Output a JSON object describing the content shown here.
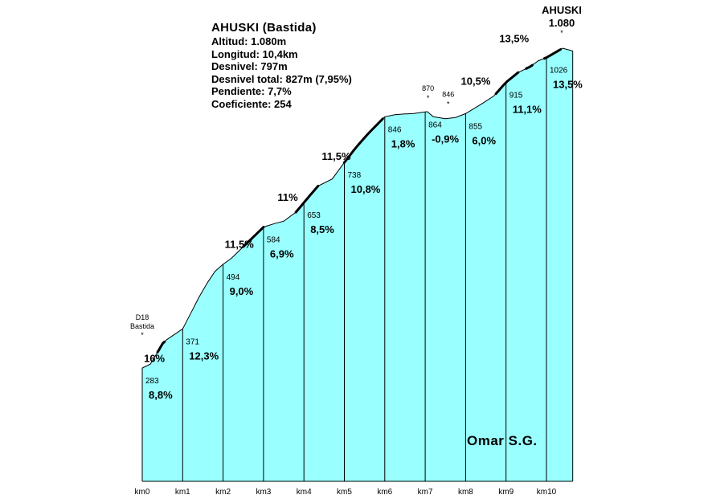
{
  "info": {
    "title": "AHUSKI (Bastida)",
    "lines": [
      "Altitud:  1.080m",
      "Longitud:  10,4km",
      "Desnivel:  797m",
      "Desnivel total:  827m (7,95%)",
      "Pendiente:  7,7%",
      "Coeficiente:  254"
    ]
  },
  "summit": {
    "name": "AHUSKI",
    "altitude": "1.080",
    "marker": "*"
  },
  "start": {
    "road": "D18",
    "place": "Bastida",
    "marker": "*"
  },
  "author": "Omar S.G.",
  "colors": {
    "fill": "#99ffff",
    "line": "#000000",
    "steep": "#000000",
    "background": "#ffffff"
  },
  "chart_data": {
    "type": "area",
    "title": "AHUSKI (Bastida)",
    "xlabel": "",
    "ylabel": "",
    "xlim": [
      0,
      10.65
    ],
    "ylim": [
      0,
      1100
    ],
    "grid": false,
    "legend": "none",
    "km_labels": [
      "km0",
      "km1",
      "km2",
      "km3",
      "km4",
      "km5",
      "km6",
      "km7",
      "km8",
      "km9",
      "km10"
    ],
    "km_altitudes": [
      "283",
      "371",
      "494",
      "584",
      "653",
      "738",
      "846",
      "864",
      "855",
      "915",
      "1026"
    ],
    "km_gradients": [
      "8,8%",
      "12,3%",
      "9,0%",
      "6,9%",
      "8,5%",
      "10,8%",
      "1,8%",
      "-0,9%",
      "6,0%",
      "11,1%",
      "13,5%"
    ],
    "profile": [
      [
        0,
        283
      ],
      [
        0.2,
        293
      ],
      [
        0.4,
        327
      ],
      [
        0.5,
        345
      ],
      [
        0.6,
        355
      ],
      [
        1.0,
        383
      ],
      [
        1.2,
        423
      ],
      [
        1.4,
        463
      ],
      [
        1.6,
        499
      ],
      [
        1.8,
        530
      ],
      [
        2.0,
        548
      ],
      [
        2.2,
        563
      ],
      [
        2.5,
        593
      ],
      [
        2.8,
        623
      ],
      [
        3.0,
        643
      ],
      [
        3.3,
        653
      ],
      [
        3.5,
        658
      ],
      [
        3.8,
        681
      ],
      [
        4.1,
        718
      ],
      [
        4.35,
        748
      ],
      [
        4.7,
        766
      ],
      [
        5.0,
        808
      ],
      [
        5.3,
        848
      ],
      [
        5.6,
        883
      ],
      [
        6.0,
        925
      ],
      [
        6.25,
        930
      ],
      [
        6.5,
        932
      ],
      [
        6.7,
        933
      ],
      [
        7.05,
        938
      ],
      [
        7.2,
        925
      ],
      [
        7.5,
        920
      ],
      [
        7.75,
        923
      ],
      [
        8.0,
        933
      ],
      [
        8.4,
        958
      ],
      [
        8.7,
        978
      ],
      [
        9.0,
        1013
      ],
      [
        9.3,
        1038
      ],
      [
        9.6,
        1053
      ],
      [
        9.8,
        1068
      ],
      [
        10.0,
        1076
      ],
      [
        10.4,
        1100
      ],
      [
        10.65,
        1093
      ]
    ],
    "steep_segments": [
      [
        0.38,
        0.55
      ],
      [
        2.5,
        3.0
      ],
      [
        3.8,
        4.35
      ],
      [
        5.0,
        5.95
      ],
      [
        8.75,
        9.3
      ],
      [
        9.5,
        9.65
      ],
      [
        9.95,
        10.35
      ]
    ],
    "section_gradients": [
      {
        "x": 0.3,
        "alt": 298,
        "label": "16%"
      },
      {
        "x": 2.4,
        "alt": 590,
        "label": "11,5%"
      },
      {
        "x": 3.6,
        "alt": 710,
        "label": "11%"
      },
      {
        "x": 4.8,
        "alt": 815,
        "label": "11,5%"
      },
      {
        "x": 8.25,
        "alt": 1007,
        "label": "10,5%"
      },
      {
        "x": 9.2,
        "alt": 1115,
        "label": "13,5%"
      }
    ],
    "point_annotations": [
      {
        "x": 7.05,
        "alt": 938,
        "label": "870",
        "marker": "*"
      },
      {
        "x": 7.55,
        "alt": 922,
        "label": "846",
        "marker": "*"
      }
    ]
  }
}
